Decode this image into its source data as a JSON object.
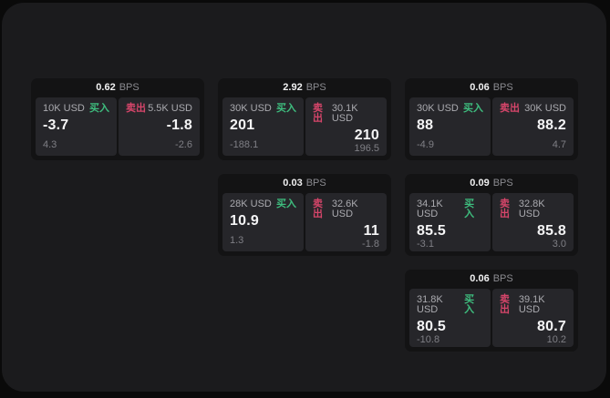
{
  "theme": {
    "outer_background": "#0a0a0a",
    "panel_background": "#1b1b1d",
    "card_background": "#131314",
    "tile_background": "#26262a",
    "buy_color": "#3ebd7e",
    "sell_color": "#d6456a"
  },
  "labels": {
    "bps_unit": "BPS",
    "buy": "买入",
    "sell": "卖出"
  },
  "cards": [
    {
      "bps": "0.62",
      "buy": {
        "size": "10K USD",
        "value": "-3.7",
        "change": "4.3"
      },
      "sell": {
        "size": "5.5K USD",
        "value": "-1.8",
        "change": "-2.6"
      }
    },
    {
      "bps": "2.92",
      "buy": {
        "size": "30K USD",
        "value": "201",
        "change": "-188.1"
      },
      "sell": {
        "size": "30.1K USD",
        "value": "210",
        "change": "196.5"
      }
    },
    {
      "bps": "0.06",
      "buy": {
        "size": "30K USD",
        "value": "88",
        "change": "-4.9"
      },
      "sell": {
        "size": "30K USD",
        "value": "88.2",
        "change": "4.7"
      }
    },
    {
      "bps": "0.03",
      "buy": {
        "size": "28K USD",
        "value": "10.9",
        "change": "1.3"
      },
      "sell": {
        "size": "32.6K USD",
        "value": "11",
        "change": "-1.8"
      }
    },
    {
      "bps": "0.09",
      "buy": {
        "size": "34.1K USD",
        "value": "85.5",
        "change": "-3.1"
      },
      "sell": {
        "size": "32.8K USD",
        "value": "85.8",
        "change": "3.0"
      }
    },
    {
      "bps": "0.06",
      "buy": {
        "size": "31.8K USD",
        "value": "80.5",
        "change": "-10.8"
      },
      "sell": {
        "size": "39.1K USD",
        "value": "80.7",
        "change": "10.2"
      }
    }
  ]
}
